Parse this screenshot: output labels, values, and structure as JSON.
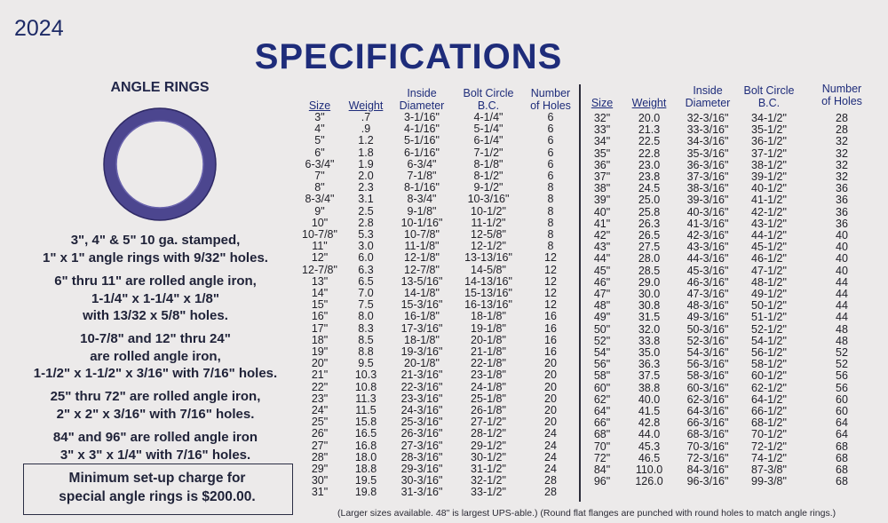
{
  "year": "2024",
  "title": "SPECIFICATIONS",
  "angle_rings": {
    "heading": "ANGLE RINGS",
    "notes": [
      [
        "3\", 4\" & 5\" 10 ga. stamped,",
        "1\" x 1\" angle rings with 9/32\" holes."
      ],
      [
        "6\" thru 11\" are rolled angle iron,",
        "1-1/4\" x 1-1/4\" x 1/8\"",
        "with 13/32 x 5/8\" holes."
      ],
      [
        "10-7/8\" and 12\" thru 24\"",
        "are rolled angle iron,",
        "1-1/2\" x 1-1/2\" x 3/16\" with 7/16\" holes."
      ],
      [
        "25\" thru 72\" are rolled angle iron,",
        "2\" x 2\" x 3/16\" with 7/16\" holes."
      ],
      [
        "84\" and 96\" are rolled angle iron",
        "3\" x 3\" x 1/4\" with 7/16\" holes."
      ]
    ],
    "box": [
      "Minimum set-up charge for",
      "special angle rings is $200.00."
    ]
  },
  "table": {
    "columns": [
      [
        "Size"
      ],
      [
        "Weight"
      ],
      [
        "Inside",
        "Diameter"
      ],
      [
        "Bolt Circle",
        "B.C."
      ],
      [
        "Number",
        "of Holes"
      ]
    ],
    "left_rows": [
      [
        "3\"",
        ".7",
        "3-1/16\"",
        "4-1/4\"",
        "6"
      ],
      [
        "4\"",
        ".9",
        "4-1/16\"",
        "5-1/4\"",
        "6"
      ],
      [
        "5\"",
        "1.2",
        "5-1/16\"",
        "6-1/4\"",
        "6"
      ],
      [
        "6\"",
        "1.8",
        "6-1/16\"",
        "7-1/2\"",
        "6"
      ],
      [
        "6-3/4\"",
        "1.9",
        "6-3/4\"",
        "8-1/8\"",
        "6"
      ],
      [
        "7\"",
        "2.0",
        "7-1/8\"",
        "8-1/2\"",
        "6"
      ],
      [
        "8\"",
        "2.3",
        "8-1/16\"",
        "9-1/2\"",
        "8"
      ],
      [
        "8-3/4\"",
        "3.1",
        "8-3/4\"",
        "10-3/16\"",
        "8"
      ],
      [
        "9\"",
        "2.5",
        "9-1/8\"",
        "10-1/2\"",
        "8"
      ],
      [
        "10\"",
        "2.8",
        "10-1/16\"",
        "11-1/2\"",
        "8"
      ],
      [
        "10-7/8\"",
        "5.3",
        "10-7/8\"",
        "12-5/8\"",
        "8"
      ],
      [
        "11\"",
        "3.0",
        "11-1/8\"",
        "12-1/2\"",
        "8"
      ],
      [
        "12\"",
        "6.0",
        "12-1/8\"",
        "13-13/16\"",
        "12"
      ],
      [
        "12-7/8\"",
        "6.3",
        "12-7/8\"",
        "14-5/8\"",
        "12"
      ],
      [
        "13\"",
        "6.5",
        "13-5/16\"",
        "14-13/16\"",
        "12"
      ],
      [
        "14\"",
        "7.0",
        "14-1/8\"",
        "15-13/16\"",
        "12"
      ],
      [
        "15\"",
        "7.5",
        "15-3/16\"",
        "16-13/16\"",
        "12"
      ],
      [
        "16\"",
        "8.0",
        "16-1/8\"",
        "18-1/8\"",
        "16"
      ],
      [
        "17\"",
        "8.3",
        "17-3/16\"",
        "19-1/8\"",
        "16"
      ],
      [
        "18\"",
        "8.5",
        "18-1/8\"",
        "20-1/8\"",
        "16"
      ],
      [
        "19\"",
        "8.8",
        "19-3/16\"",
        "21-1/8\"",
        "16"
      ],
      [
        "20\"",
        "9.5",
        "20-1/8\"",
        "22-1/8\"",
        "20"
      ],
      [
        "21\"",
        "10.3",
        "21-3/16\"",
        "23-1/8\"",
        "20"
      ],
      [
        "22\"",
        "10.8",
        "22-3/16\"",
        "24-1/8\"",
        "20"
      ],
      [
        "23\"",
        "11.3",
        "23-3/16\"",
        "25-1/8\"",
        "20"
      ],
      [
        "24\"",
        "11.5",
        "24-3/16\"",
        "26-1/8\"",
        "20"
      ],
      [
        "25\"",
        "15.8",
        "25-3/16\"",
        "27-1/2\"",
        "20"
      ],
      [
        "26\"",
        "16.5",
        "26-3/16\"",
        "28-1/2\"",
        "24"
      ],
      [
        "27\"",
        "16.8",
        "27-3/16\"",
        "29-1/2\"",
        "24"
      ],
      [
        "28\"",
        "18.0",
        "28-3/16\"",
        "30-1/2\"",
        "24"
      ],
      [
        "29\"",
        "18.8",
        "29-3/16\"",
        "31-1/2\"",
        "24"
      ],
      [
        "30\"",
        "19.5",
        "30-3/16\"",
        "32-1/2\"",
        "28"
      ],
      [
        "31\"",
        "19.8",
        "31-3/16\"",
        "33-1/2\"",
        "28"
      ]
    ],
    "right_rows": [
      [
        "32\"",
        "20.0",
        "32-3/16\"",
        "34-1/2\"",
        "28"
      ],
      [
        "33\"",
        "21.3",
        "33-3/16\"",
        "35-1/2\"",
        "28"
      ],
      [
        "34\"",
        "22.5",
        "34-3/16\"",
        "36-1/2\"",
        "32"
      ],
      [
        "35\"",
        "22.8",
        "35-3/16\"",
        "37-1/2\"",
        "32"
      ],
      [
        "36\"",
        "23.0",
        "36-3/16\"",
        "38-1/2\"",
        "32"
      ],
      [
        "37\"",
        "23.8",
        "37-3/16\"",
        "39-1/2\"",
        "32"
      ],
      [
        "38\"",
        "24.5",
        "38-3/16\"",
        "40-1/2\"",
        "36"
      ],
      [
        "39\"",
        "25.0",
        "39-3/16\"",
        "41-1/2\"",
        "36"
      ],
      [
        "40\"",
        "25.8",
        "40-3/16\"",
        "42-1/2\"",
        "36"
      ],
      [
        "41\"",
        "26.3",
        "41-3/16\"",
        "43-1/2\"",
        "36"
      ],
      [
        "42\"",
        "26.5",
        "42-3/16\"",
        "44-1/2\"",
        "40"
      ],
      [
        "43\"",
        "27.5",
        "43-3/16\"",
        "45-1/2\"",
        "40"
      ],
      [
        "44\"",
        "28.0",
        "44-3/16\"",
        "46-1/2\"",
        "40"
      ],
      [
        "45\"",
        "28.5",
        "45-3/16\"",
        "47-1/2\"",
        "40"
      ],
      [
        "46\"",
        "29.0",
        "46-3/16\"",
        "48-1/2\"",
        "44"
      ],
      [
        "47\"",
        "30.0",
        "47-3/16\"",
        "49-1/2\"",
        "44"
      ],
      [
        "48\"",
        "30.8",
        "48-3/16\"",
        "50-1/2\"",
        "44"
      ],
      [
        "49\"",
        "31.5",
        "49-3/16\"",
        "51-1/2\"",
        "44"
      ],
      [
        "50\"",
        "32.0",
        "50-3/16\"",
        "52-1/2\"",
        "48"
      ],
      [
        "52\"",
        "33.8",
        "52-3/16\"",
        "54-1/2\"",
        "48"
      ],
      [
        "54\"",
        "35.0",
        "54-3/16\"",
        "56-1/2\"",
        "52"
      ],
      [
        "56\"",
        "36.3",
        "56-3/16\"",
        "58-1/2\"",
        "52"
      ],
      [
        "58\"",
        "37.5",
        "58-3/16\"",
        "60-1/2\"",
        "56"
      ],
      [
        "60\"",
        "38.8",
        "60-3/16\"",
        "62-1/2\"",
        "56"
      ],
      [
        "62\"",
        "40.0",
        "62-3/16\"",
        "64-1/2\"",
        "60"
      ],
      [
        "64\"",
        "41.5",
        "64-3/16\"",
        "66-1/2\"",
        "60"
      ],
      [
        "66\"",
        "42.8",
        "66-3/16\"",
        "68-1/2\"",
        "64"
      ],
      [
        "68\"",
        "44.0",
        "68-3/16\"",
        "70-1/2\"",
        "64"
      ],
      [
        "70\"",
        "45.3",
        "70-3/16\"",
        "72-1/2\"",
        "68"
      ],
      [
        "72\"",
        "46.5",
        "72-3/16\"",
        "74-1/2\"",
        "68"
      ],
      [
        "84\"",
        "110.0",
        "84-3/16\"",
        "87-3/8\"",
        "68"
      ],
      [
        "96\"",
        "126.0",
        "96-3/16\"",
        "99-3/8\"",
        "68"
      ]
    ]
  },
  "footnote": "(Larger sizes available. 48\" is largest UPS-able.) (Round flat flanges are punched with round holes to match angle rings.)"
}
